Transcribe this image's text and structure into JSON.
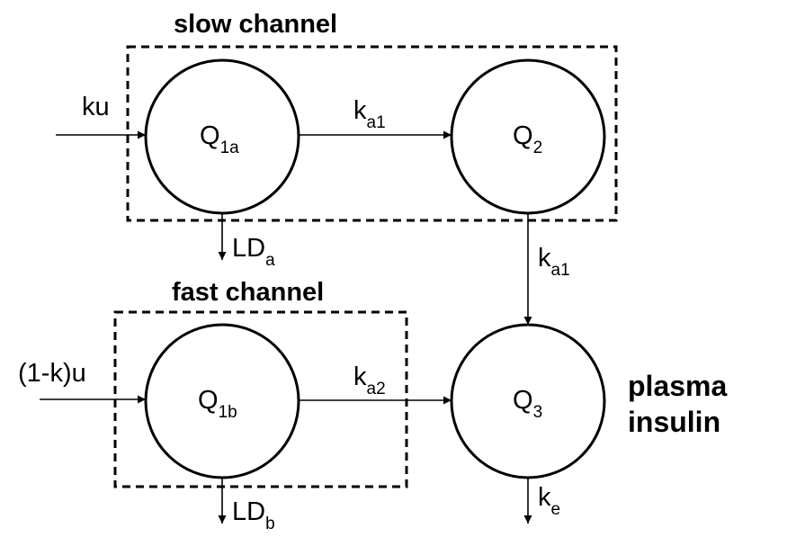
{
  "title_slow": "slow channel",
  "title_fast": "fast channel",
  "plasma_line1": "plasma",
  "plasma_line2": "insulin",
  "input_top": "ku",
  "input_bottom": "(1-k)u",
  "nodes": {
    "q1a": {
      "main": "Q",
      "sub": "1a"
    },
    "q2": {
      "main": "Q",
      "sub": "2"
    },
    "q1b": {
      "main": "Q",
      "sub": "1b"
    },
    "q3": {
      "main": "Q",
      "sub": "3"
    }
  },
  "rates": {
    "top": {
      "main": "k",
      "sub": "a1"
    },
    "right": {
      "main": "k",
      "sub": "a1"
    },
    "bottom": {
      "main": "k",
      "sub": "a2"
    },
    "elim": {
      "main": "k",
      "sub": "e"
    }
  },
  "losses": {
    "a": {
      "main": "LD",
      "sub": "a"
    },
    "b": {
      "main": "LD",
      "sub": "b"
    }
  }
}
